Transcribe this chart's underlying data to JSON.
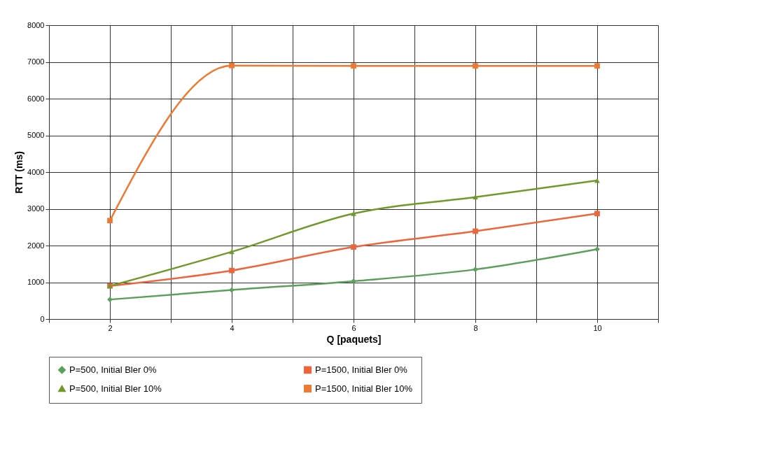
{
  "chart_data": {
    "type": "line",
    "xlabel": "Q [paquets]",
    "ylabel": "RTT (ms)",
    "x": [
      2,
      4,
      6,
      8,
      10
    ],
    "xlim": [
      1,
      11
    ],
    "xticks": [
      {
        "value": 1,
        "label": null
      },
      2,
      {
        "value": 3,
        "label": null
      },
      4,
      {
        "value": 5,
        "label": null
      },
      6,
      {
        "value": 7,
        "label": null
      },
      8,
      {
        "value": 9,
        "label": null
      },
      10,
      {
        "value": 11,
        "label": null
      }
    ],
    "ylim": [
      0,
      8000
    ],
    "yticks": [
      0,
      1000,
      2000,
      3000,
      4000,
      5000,
      6000,
      7000,
      8000
    ],
    "grid": true,
    "legend": "bottom",
    "series": [
      {
        "name": "P=500, Initial Bler 0%",
        "color": "#5aa05a",
        "marker": "diamond",
        "values": [
          530,
          790,
          1030,
          1350,
          1900
        ]
      },
      {
        "name": "P=1500, Initial Bler 0%",
        "color": "#f0643c",
        "marker": "square",
        "values": [
          900,
          1320,
          1960,
          2390,
          2870
        ]
      },
      {
        "name": "P=500, Initial Bler 10%",
        "color": "#6e9a2a",
        "marker": "triangle",
        "values": [
          900,
          1830,
          2870,
          3320,
          3770
        ]
      },
      {
        "name": "P=1500, Initial Bler 10%",
        "color": "#f07830",
        "marker": "square",
        "values": [
          2680,
          6900,
          6890,
          6890,
          6890
        ]
      }
    ]
  }
}
